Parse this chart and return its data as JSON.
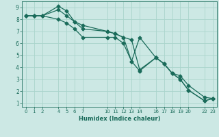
{
  "xlabel": "Humidex (Indice chaleur)",
  "bg_color": "#cce8e4",
  "grid_color": "#aad4cc",
  "line_color": "#1a6b5a",
  "xlim": [
    -0.5,
    23.5
  ],
  "ylim": [
    0.7,
    9.5
  ],
  "xticks": [
    0,
    1,
    2,
    4,
    5,
    6,
    7,
    10,
    11,
    12,
    13,
    14,
    16,
    17,
    18,
    19,
    20,
    22,
    23
  ],
  "yticks": [
    1,
    2,
    3,
    4,
    5,
    6,
    7,
    8,
    9
  ],
  "line1_x": [
    0,
    1,
    2,
    4,
    5,
    6,
    7,
    10,
    11,
    12,
    13,
    14,
    16,
    17,
    18,
    19,
    20,
    22,
    23
  ],
  "line1_y": [
    8.3,
    8.3,
    8.3,
    8.8,
    8.3,
    7.8,
    7.5,
    7.0,
    6.8,
    6.5,
    6.3,
    3.8,
    4.8,
    4.3,
    3.5,
    3.0,
    2.1,
    1.2,
    1.4
  ],
  "line2_x": [
    0,
    1,
    2,
    4,
    5,
    6,
    7,
    10,
    11,
    12,
    13,
    14,
    16,
    17,
    18,
    19,
    20,
    22,
    23
  ],
  "line2_y": [
    8.3,
    8.3,
    8.3,
    9.1,
    8.7,
    7.8,
    7.2,
    7.0,
    6.8,
    6.5,
    4.5,
    6.5,
    4.8,
    4.3,
    3.5,
    3.0,
    2.1,
    1.2,
    1.4
  ],
  "line3_x": [
    0,
    1,
    2,
    4,
    5,
    6,
    7,
    10,
    11,
    12,
    13,
    14,
    16,
    17,
    18,
    19,
    20,
    22,
    23
  ],
  "line3_y": [
    8.3,
    8.3,
    8.3,
    8.0,
    7.7,
    7.2,
    6.5,
    6.5,
    6.5,
    6.0,
    4.5,
    3.7,
    4.8,
    4.3,
    3.5,
    3.3,
    2.5,
    1.5,
    1.4
  ],
  "marker_size": 2.5,
  "line_width": 0.9
}
